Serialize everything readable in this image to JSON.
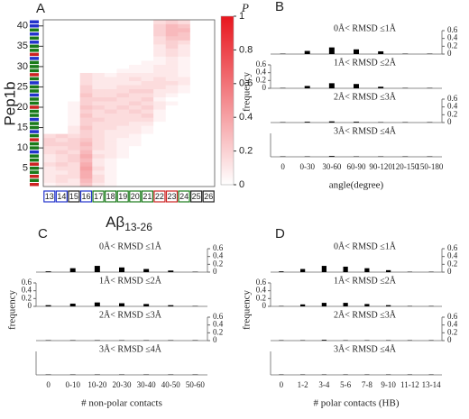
{
  "chart_data": [
    {
      "type": "heatmap",
      "panel_label": "A",
      "ylabel": "Pep1b",
      "xlabel": "Aβ",
      "xlabel_subscript": "13-26",
      "categories": [
        "13",
        "14",
        "15",
        "16",
        "17",
        "18",
        "19",
        "20",
        "21",
        "22",
        "23",
        "24",
        "25",
        "26"
      ],
      "col_colors": [
        "#2233cc",
        "#2233cc",
        "#222222",
        "#2233cc",
        "#1a7a1a",
        "#1a7a1a",
        "#1a7a1a",
        "#1a7a1a",
        "#1a7a1a",
        "#cc2222",
        "#cc2222",
        "#1a7a1a",
        "#222222",
        "#222222"
      ],
      "y": [
        1,
        2,
        3,
        4,
        5,
        6,
        7,
        8,
        9,
        10,
        11,
        12,
        13,
        14,
        15,
        16,
        17,
        18,
        19,
        20,
        21,
        22,
        23,
        24,
        25,
        26,
        27,
        28,
        29,
        30,
        31,
        32,
        33,
        34,
        35,
        36,
        37,
        38,
        39,
        40,
        41
      ],
      "row_colors": [
        "#cc2222",
        "#1a7a1a",
        "#cc2222",
        "#1a7a1a",
        "#1a7a1a",
        "#cc2222",
        "#1a7a1a",
        "#1a7a1a",
        "#2233cc",
        "#1a7a1a",
        "#1a7a1a",
        "#cc2222",
        "#1a7a1a",
        "#2233cc",
        "#1a7a1a",
        "#1a7a1a",
        "#2233cc",
        "#1a7a1a",
        "#1a7a1a",
        "#cc2222",
        "#1a7a1a",
        "#1a7a1a",
        "#2233cc",
        "#1a7a1a",
        "#1a7a1a",
        "#2233cc",
        "#1a7a1a",
        "#cc2222",
        "#1a7a1a",
        "#1a7a1a",
        "#1a7a1a",
        "#2233cc",
        "#cc2222",
        "#1a7a1a",
        "#1a7a1a",
        "#2233cc",
        "#1a7a1a",
        "#2233cc",
        "#1a7a1a",
        "#2233cc",
        "#2233cc"
      ],
      "ylim": [
        0.5,
        41.5
      ],
      "yticks": [
        5,
        10,
        15,
        20,
        25,
        30,
        35,
        40
      ],
      "zlim": [
        0,
        1
      ],
      "zticks": [
        0,
        0.2,
        0.4,
        0.6,
        0.8,
        1
      ],
      "colorbar_label": "P",
      "colors": [
        "#ffffff",
        "#e8161e"
      ],
      "values": [
        [
          0.05,
          0.1,
          0.1,
          0.25,
          0.1,
          0.05,
          0,
          0,
          0,
          0,
          0,
          0,
          0,
          0
        ],
        [
          0.1,
          0.15,
          0.1,
          0.3,
          0.15,
          0.05,
          0,
          0,
          0,
          0,
          0,
          0,
          0,
          0
        ],
        [
          0.1,
          0.15,
          0.15,
          0.35,
          0.15,
          0.05,
          0,
          0,
          0,
          0,
          0,
          0,
          0,
          0
        ],
        [
          0.1,
          0.1,
          0.15,
          0.35,
          0.1,
          0.05,
          0,
          0,
          0,
          0,
          0,
          0,
          0,
          0
        ],
        [
          0.1,
          0.15,
          0.15,
          0.4,
          0.15,
          0.05,
          0,
          0,
          0,
          0,
          0,
          0,
          0,
          0
        ],
        [
          0.15,
          0.2,
          0.15,
          0.35,
          0.1,
          0.05,
          0,
          0,
          0,
          0,
          0,
          0,
          0,
          0
        ],
        [
          0.1,
          0.15,
          0.2,
          0.3,
          0.1,
          0.05,
          0,
          0,
          0,
          0,
          0,
          0,
          0,
          0
        ],
        [
          0.1,
          0.15,
          0.2,
          0.35,
          0.15,
          0.1,
          0.05,
          0,
          0,
          0,
          0,
          0,
          0,
          0
        ],
        [
          0.15,
          0.2,
          0.15,
          0.3,
          0.1,
          0.1,
          0.05,
          0,
          0,
          0,
          0,
          0,
          0,
          0
        ],
        [
          0.15,
          0.15,
          0.2,
          0.25,
          0.15,
          0.1,
          0.05,
          0,
          0,
          0,
          0,
          0,
          0,
          0
        ],
        [
          0.2,
          0.2,
          0.2,
          0.3,
          0.15,
          0.1,
          0.05,
          0.05,
          0,
          0,
          0,
          0,
          0,
          0
        ],
        [
          0.2,
          0.15,
          0.2,
          0.25,
          0.15,
          0.1,
          0.05,
          0.05,
          0,
          0,
          0,
          0,
          0,
          0
        ],
        [
          0.15,
          0.2,
          0.15,
          0.2,
          0.15,
          0.1,
          0.1,
          0.05,
          0,
          0,
          0,
          0,
          0,
          0
        ],
        [
          0,
          0,
          0.1,
          0.2,
          0.15,
          0.1,
          0.1,
          0.1,
          0.05,
          0,
          0,
          0,
          0,
          0
        ],
        [
          0,
          0,
          0.1,
          0.25,
          0.15,
          0.15,
          0.1,
          0.1,
          0.05,
          0,
          0,
          0,
          0,
          0
        ],
        [
          0,
          0,
          0.05,
          0.2,
          0.15,
          0.15,
          0.15,
          0.1,
          0.1,
          0,
          0,
          0,
          0,
          0
        ],
        [
          0,
          0,
          0.05,
          0.2,
          0.2,
          0.15,
          0.15,
          0.15,
          0.15,
          0.05,
          0,
          0,
          0,
          0
        ],
        [
          0,
          0,
          0.05,
          0.25,
          0.15,
          0.15,
          0.15,
          0.15,
          0.2,
          0.05,
          0,
          0,
          0,
          0
        ],
        [
          0,
          0,
          0.05,
          0.2,
          0.15,
          0.2,
          0.15,
          0.2,
          0.15,
          0.05,
          0,
          0,
          0,
          0
        ],
        [
          0,
          0,
          0.05,
          0.25,
          0.2,
          0.15,
          0.2,
          0.15,
          0.2,
          0.1,
          0,
          0,
          0,
          0
        ],
        [
          0,
          0,
          0.05,
          0.2,
          0.15,
          0.15,
          0.15,
          0.2,
          0.15,
          0.1,
          0.05,
          0,
          0,
          0
        ],
        [
          0,
          0,
          0,
          0.2,
          0.2,
          0.2,
          0.15,
          0.15,
          0.2,
          0.05,
          0,
          0,
          0,
          0
        ],
        [
          0,
          0,
          0,
          0.25,
          0.15,
          0.15,
          0.2,
          0.15,
          0.15,
          0.1,
          0.05,
          0,
          0,
          0
        ],
        [
          0,
          0,
          0,
          0.2,
          0.15,
          0.15,
          0.15,
          0.2,
          0.2,
          0.1,
          0.1,
          0.05,
          0,
          0
        ],
        [
          0,
          0,
          0,
          0.2,
          0.1,
          0.1,
          0.15,
          0.15,
          0.15,
          0.15,
          0.1,
          0.05,
          0,
          0
        ],
        [
          0,
          0,
          0,
          0.15,
          0.1,
          0.1,
          0.1,
          0.1,
          0.15,
          0.15,
          0.15,
          0.1,
          0,
          0
        ],
        [
          0,
          0,
          0,
          0.15,
          0.1,
          0.1,
          0.1,
          0.15,
          0.1,
          0.15,
          0.1,
          0.1,
          0,
          0
        ],
        [
          0,
          0,
          0,
          0.15,
          0.1,
          0.05,
          0.1,
          0.1,
          0.1,
          0.1,
          0.1,
          0.05,
          0,
          0
        ],
        [
          0,
          0,
          0,
          0,
          0,
          0,
          0.05,
          0.05,
          0.05,
          0.1,
          0.1,
          0.05,
          0,
          0
        ],
        [
          0,
          0,
          0,
          0,
          0,
          0,
          0,
          0.05,
          0.05,
          0.1,
          0.1,
          0.05,
          0,
          0
        ],
        [
          0,
          0,
          0,
          0,
          0,
          0,
          0,
          0,
          0.05,
          0.05,
          0.1,
          0.05,
          0,
          0
        ],
        [
          0,
          0,
          0,
          0,
          0,
          0,
          0,
          0,
          0,
          0.05,
          0.1,
          0.05,
          0,
          0
        ],
        [
          0,
          0,
          0,
          0,
          0,
          0,
          0,
          0,
          0,
          0.1,
          0.15,
          0.1,
          0,
          0
        ],
        [
          0,
          0,
          0,
          0,
          0,
          0,
          0,
          0,
          0,
          0.1,
          0.15,
          0.1,
          0,
          0
        ],
        [
          0,
          0,
          0,
          0,
          0,
          0,
          0,
          0,
          0,
          0.1,
          0.2,
          0.1,
          0,
          0
        ],
        [
          0,
          0,
          0,
          0,
          0,
          0,
          0,
          0,
          0,
          0.15,
          0.2,
          0.15,
          0,
          0
        ],
        [
          0,
          0,
          0,
          0,
          0,
          0,
          0,
          0,
          0,
          0.15,
          0.25,
          0.25,
          0,
          0
        ],
        [
          0,
          0,
          0,
          0,
          0,
          0,
          0,
          0,
          0,
          0.2,
          0.3,
          0.25,
          0,
          0
        ],
        [
          0,
          0,
          0,
          0,
          0,
          0,
          0,
          0,
          0,
          0.2,
          0.3,
          0.3,
          0,
          0
        ],
        [
          0,
          0,
          0,
          0,
          0,
          0,
          0,
          0,
          0,
          0.2,
          0.3,
          0.25,
          0,
          0
        ],
        [
          0,
          0,
          0,
          0,
          0,
          0,
          0,
          0,
          0,
          0.15,
          0.2,
          0.15,
          0,
          0
        ]
      ]
    },
    {
      "type": "bar",
      "panel_label": "B",
      "ylabel": "frequency",
      "xlabel": "angle(degree)",
      "color": "#000000",
      "categories": [
        "0",
        "0-30",
        "30-60",
        "60-90",
        "90-120",
        "120-150",
        "150-180"
      ],
      "panels": [
        {
          "annotation": "0Å< RMSD ≤1Å",
          "axis_side": "right",
          "ylim": [
            0,
            0.6
          ],
          "yticks": [
            0,
            0.2,
            0.4,
            0.6
          ],
          "values": [
            0.01,
            0.08,
            0.17,
            0.12,
            0.07,
            0.01,
            0.01
          ]
        },
        {
          "annotation": "1Å< RMSD ≤2Å",
          "axis_side": "left",
          "ylim": [
            0,
            0.6
          ],
          "yticks": [
            0,
            0.2,
            0.4,
            0.6
          ],
          "values": [
            0.01,
            0.06,
            0.13,
            0.11,
            0.04,
            0.01,
            0.01
          ]
        },
        {
          "annotation": "2Å< RMSD ≤3Å",
          "axis_side": "right",
          "ylim": [
            0,
            0.6
          ],
          "yticks": [
            0,
            0.2,
            0.4,
            0.6
          ],
          "values": [
            0.01,
            0.02,
            0.03,
            0.02,
            0.01,
            0.01,
            0.01
          ]
        },
        {
          "annotation": "3Å< RMSD ≤4Å",
          "axis_side": "left",
          "ylim": [
            0,
            0.6
          ],
          "values": [
            0.01,
            0.01,
            0.02,
            0.01,
            0.01,
            0.01,
            0.01
          ]
        }
      ]
    },
    {
      "type": "bar",
      "panel_label": "C",
      "ylabel": "frequency",
      "xlabel": "# non-polar contacts",
      "color": "#000000",
      "categories": [
        "0",
        "0-10",
        "10-20",
        "20-30",
        "30-40",
        "40-50",
        "50-60"
      ],
      "panels": [
        {
          "annotation": "0Å< RMSD ≤1Å",
          "axis_side": "right",
          "ylim": [
            0,
            0.6
          ],
          "yticks": [
            0,
            0.2,
            0.4,
            0.6
          ],
          "values": [
            0.02,
            0.1,
            0.16,
            0.12,
            0.08,
            0.04,
            0.01
          ]
        },
        {
          "annotation": "1Å< RMSD ≤2Å",
          "axis_side": "left",
          "ylim": [
            0,
            0.6
          ],
          "yticks": [
            0,
            0.2,
            0.4,
            0.6
          ],
          "values": [
            0.03,
            0.07,
            0.1,
            0.08,
            0.06,
            0.03,
            0.01
          ]
        },
        {
          "annotation": "2Å< RMSD ≤3Å",
          "axis_side": "right",
          "ylim": [
            0,
            0.6
          ],
          "yticks": [
            0,
            0.2,
            0.4,
            0.6
          ],
          "values": [
            0.01,
            0.01,
            0.01,
            0.01,
            0.01,
            0.01,
            0.01
          ]
        },
        {
          "annotation": "3Å< RMSD ≤4Å",
          "axis_side": "left",
          "ylim": [
            0,
            0.6
          ],
          "values": [
            0.01,
            0.01,
            0.01,
            0.01,
            0.01,
            0.01,
            0.01
          ]
        }
      ]
    },
    {
      "type": "bar",
      "panel_label": "D",
      "ylabel": "frequency",
      "xlabel": "# polar contacts (HB)",
      "color": "#000000",
      "categories": [
        "0",
        "1-2",
        "3-4",
        "5-6",
        "7-8",
        "9-10",
        "11-12",
        "13-14"
      ],
      "panels": [
        {
          "annotation": "0Å< RMSD ≤1Å",
          "axis_side": "right",
          "ylim": [
            0,
            0.6
          ],
          "yticks": [
            0,
            0.2,
            0.4,
            0.6
          ],
          "values": [
            0.02,
            0.08,
            0.16,
            0.14,
            0.1,
            0.05,
            0.01,
            0.01
          ]
        },
        {
          "annotation": "1Å< RMSD ≤2Å",
          "axis_side": "left",
          "ylim": [
            0,
            0.6
          ],
          "yticks": [
            0,
            0.2,
            0.4,
            0.6
          ],
          "values": [
            0.01,
            0.05,
            0.09,
            0.09,
            0.06,
            0.03,
            0.01,
            0.01
          ]
        },
        {
          "annotation": "2Å< RMSD ≤3Å",
          "axis_side": "right",
          "ylim": [
            0,
            0.6
          ],
          "yticks": [
            0,
            0.2,
            0.4,
            0.6
          ],
          "values": [
            0.01,
            0.01,
            0.02,
            0.01,
            0.01,
            0.01,
            0.01,
            0.01
          ]
        },
        {
          "annotation": "3Å< RMSD ≤4Å",
          "axis_side": "left",
          "ylim": [
            0,
            0.6
          ],
          "values": [
            0.01,
            0.01,
            0.01,
            0.01,
            0.01,
            0.01,
            0.01,
            0.01
          ]
        }
      ]
    }
  ]
}
